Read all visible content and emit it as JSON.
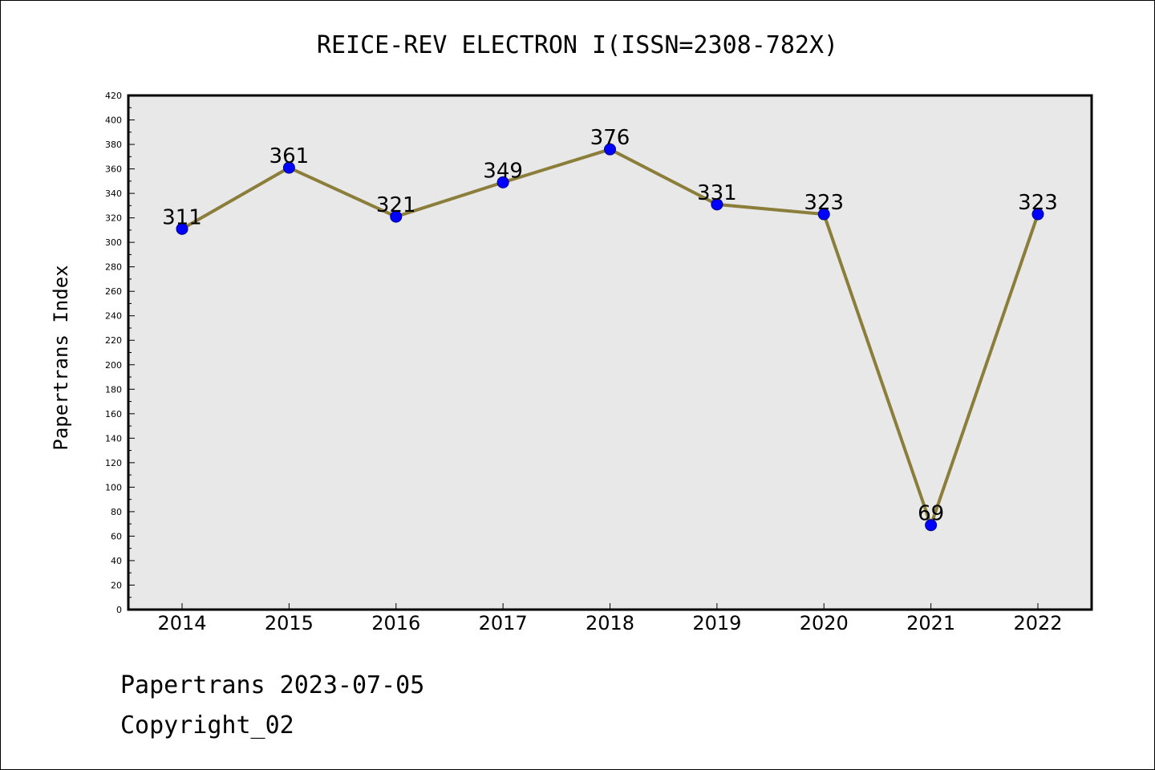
{
  "chart_data": {
    "type": "line",
    "title": "REICE-REV ELECTRON I(ISSN=2308-782X)",
    "ylabel": "Papertrans Index",
    "xlabel": "",
    "categories": [
      "2014",
      "2015",
      "2016",
      "2017",
      "2018",
      "2019",
      "2020",
      "2021",
      "2022"
    ],
    "series": [
      {
        "values": [
          311,
          361,
          321,
          349,
          376,
          331,
          323,
          69,
          323
        ]
      }
    ],
    "ylim": [
      0,
      420
    ],
    "yticks": [
      0,
      20,
      40,
      60,
      80,
      100,
      120,
      140,
      160,
      180,
      200,
      220,
      240,
      260,
      280,
      300,
      320,
      340,
      360,
      380,
      400,
      420
    ],
    "data_labels": [
      "311",
      "361",
      "321",
      "349",
      "376",
      "331",
      "323",
      "69",
      "323"
    ],
    "grid": false,
    "colors": {
      "line": "#8b7d3a",
      "marker": "#0000ff",
      "plot_bg": "#e8e8e8"
    }
  },
  "footer": {
    "date_line": "Papertrans 2023-07-05",
    "copyright": "Copyright_02"
  }
}
